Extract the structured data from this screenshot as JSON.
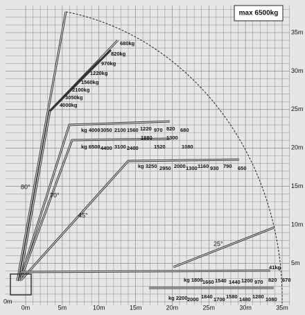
{
  "title": "max 6500kg",
  "y_axis_labels": [
    "0m",
    "5m",
    "10m",
    "15m",
    "20m",
    "25m",
    "30m",
    "35m"
  ],
  "x_axis_labels": [
    "0m",
    "5m",
    "10m",
    "15m",
    "20m",
    "25m",
    "30m",
    "35m"
  ],
  "angle_labels": [
    "80°",
    "70°",
    "45°",
    "25°"
  ],
  "load_groups": [
    {
      "labels": [
        "680kg",
        "820kg",
        "970kg",
        "1220kg",
        "1560kg",
        "2100kg",
        "3050kg",
        "4000kg"
      ]
    },
    {
      "labels": [
        "kg 4000",
        "3050",
        "2100",
        "1560",
        "1220",
        "970",
        "820",
        "680"
      ]
    },
    {
      "labels": [
        "kg 6500",
        "4400",
        "3100",
        "2400",
        "1880",
        "1520",
        "1300",
        "1080"
      ]
    },
    {
      "labels": [
        "kg 3250",
        "2950",
        "2000",
        "1300",
        "1160",
        "930",
        "790",
        "650"
      ]
    },
    {
      "labels": [
        "41kg",
        "kg 1800",
        "1660",
        "1540",
        "1440",
        "1200",
        "970",
        "820",
        "670"
      ]
    },
    {
      "labels": [
        "kg 2200",
        "2000",
        "1840",
        "1700",
        "1580",
        "1480",
        "1280",
        "1080"
      ]
    }
  ]
}
